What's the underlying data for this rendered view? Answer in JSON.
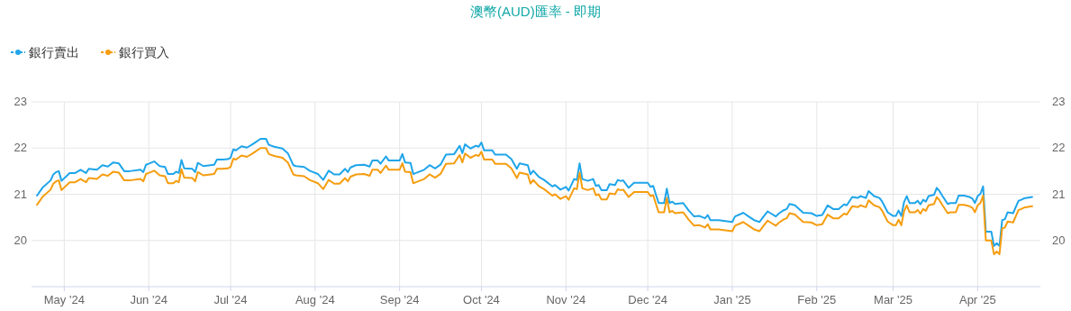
{
  "chart_data": {
    "type": "line",
    "title": "澳幣(AUD)匯率 - 即期",
    "legend": "top left",
    "grid": true,
    "x": [
      "2024-04-21",
      "2024-04-23",
      "2024-04-26",
      "2024-04-27",
      "2024-04-28",
      "2024-04-29",
      "2024-04-30",
      "2024-05-03",
      "2024-05-05",
      "2024-05-07",
      "2024-05-09",
      "2024-05-10",
      "2024-05-13",
      "2024-05-15",
      "2024-05-17",
      "2024-05-19",
      "2024-05-21",
      "2024-05-23",
      "2024-05-25",
      "2024-05-29",
      "2024-05-30",
      "2024-05-31",
      "2024-06-01",
      "2024-06-03",
      "2024-06-05",
      "2024-06-07",
      "2024-06-08",
      "2024-06-10",
      "2024-06-11",
      "2024-06-12",
      "2024-06-13",
      "2024-06-14",
      "2024-06-17",
      "2024-06-18",
      "2024-06-19",
      "2024-06-21",
      "2024-06-25",
      "2024-06-26",
      "2024-06-28",
      "2024-06-30",
      "2024-07-01",
      "2024-07-02",
      "2024-07-03",
      "2024-07-05",
      "2024-07-07",
      "2024-07-09",
      "2024-07-10",
      "2024-07-12",
      "2024-07-14",
      "2024-07-15",
      "2024-07-17",
      "2024-07-20",
      "2024-07-22",
      "2024-07-24",
      "2024-07-25",
      "2024-07-28",
      "2024-07-30",
      "2024-08-02",
      "2024-08-04",
      "2024-08-06",
      "2024-08-08",
      "2024-08-10",
      "2024-08-12",
      "2024-08-13",
      "2024-08-14",
      "2024-08-16",
      "2024-08-19",
      "2024-08-21",
      "2024-08-22",
      "2024-08-24",
      "2024-08-25",
      "2024-08-27",
      "2024-08-28",
      "2024-09-01",
      "2024-09-02",
      "2024-09-03",
      "2024-09-05",
      "2024-09-06",
      "2024-09-07",
      "2024-09-10",
      "2024-09-12",
      "2024-09-14",
      "2024-09-16",
      "2024-09-18",
      "2024-09-21",
      "2024-09-23",
      "2024-09-24",
      "2024-09-25",
      "2024-09-27",
      "2024-09-29",
      "2024-09-30",
      "2024-10-01",
      "2024-10-02",
      "2024-10-05",
      "2024-10-06",
      "2024-10-10",
      "2024-10-12",
      "2024-10-14",
      "2024-10-15",
      "2024-10-18",
      "2024-10-19",
      "2024-10-20",
      "2024-10-22",
      "2024-10-24",
      "2024-10-27",
      "2024-10-28",
      "2024-10-30",
      "2024-11-01",
      "2024-11-02",
      "2024-11-04",
      "2024-11-05",
      "2024-11-06",
      "2024-11-07",
      "2024-11-09",
      "2024-11-11",
      "2024-11-12",
      "2024-11-13",
      "2024-11-14",
      "2024-11-16",
      "2024-11-17",
      "2024-11-19",
      "2024-11-20",
      "2024-11-21",
      "2024-11-22",
      "2024-11-24",
      "2024-11-26",
      "2024-12-01",
      "2024-12-02",
      "2024-12-03",
      "2024-12-04",
      "2024-12-05",
      "2024-12-07",
      "2024-12-08",
      "2024-12-09",
      "2024-12-10",
      "2024-12-11",
      "2024-12-14",
      "2024-12-16",
      "2024-12-18",
      "2024-12-20",
      "2024-12-22",
      "2024-12-23",
      "2024-12-24",
      "2024-12-27",
      "2025-01-01",
      "2025-01-02",
      "2025-01-04",
      "2025-01-05",
      "2025-01-07",
      "2025-01-09",
      "2025-01-11",
      "2025-01-12",
      "2025-01-14",
      "2025-01-15",
      "2025-01-17",
      "2025-01-18",
      "2025-01-20",
      "2025-01-21",
      "2025-01-22",
      "2025-01-24",
      "2025-01-27",
      "2025-01-30",
      "2025-02-01",
      "2025-02-03",
      "2025-02-05",
      "2025-02-07",
      "2025-02-09",
      "2025-02-11",
      "2025-02-12",
      "2025-02-14",
      "2025-02-16",
      "2025-02-17",
      "2025-02-19",
      "2025-02-20",
      "2025-02-22",
      "2025-02-24",
      "2025-02-25",
      "2025-02-27",
      "2025-03-01",
      "2025-03-02",
      "2025-03-03",
      "2025-03-04",
      "2025-03-05",
      "2025-03-06",
      "2025-03-07",
      "2025-03-09",
      "2025-03-10",
      "2025-03-11",
      "2025-03-12",
      "2025-03-13",
      "2025-03-14",
      "2025-03-16",
      "2025-03-17",
      "2025-03-18",
      "2025-03-19",
      "2025-03-21",
      "2025-03-22",
      "2025-03-24",
      "2025-03-25",
      "2025-03-27",
      "2025-03-29",
      "2025-03-30",
      "2025-03-31",
      "2025-04-01",
      "2025-04-02",
      "2025-04-03",
      "2025-04-04",
      "2025-04-06",
      "2025-04-07",
      "2025-04-08",
      "2025-04-09",
      "2025-04-10",
      "2025-04-11",
      "2025-04-12",
      "2025-04-14",
      "2025-04-16",
      "2025-04-17",
      "2025-04-18",
      "2025-04-21"
    ],
    "series": [
      {
        "name": "銀行賣出",
        "color": "#1fa5ea",
        "values": [
          20.97,
          21.14,
          21.3,
          21.43,
          21.48,
          21.5,
          21.29,
          21.46,
          21.46,
          21.53,
          21.46,
          21.55,
          21.53,
          21.63,
          21.6,
          21.69,
          21.67,
          21.5,
          21.5,
          21.53,
          21.48,
          21.64,
          21.66,
          21.71,
          21.61,
          21.59,
          21.44,
          21.44,
          21.49,
          21.46,
          21.74,
          21.56,
          21.55,
          21.48,
          21.68,
          21.61,
          21.64,
          21.75,
          21.75,
          21.76,
          21.79,
          21.97,
          21.95,
          22.04,
          22.01,
          22.08,
          22.12,
          22.2,
          22.2,
          22.07,
          22.03,
          21.99,
          21.89,
          21.63,
          21.61,
          21.59,
          21.51,
          21.44,
          21.31,
          21.51,
          21.43,
          21.43,
          21.55,
          21.48,
          21.58,
          21.63,
          21.64,
          21.6,
          21.73,
          21.73,
          21.66,
          21.82,
          21.73,
          21.73,
          21.87,
          21.69,
          21.68,
          21.44,
          21.46,
          21.53,
          21.63,
          21.56,
          21.64,
          21.86,
          21.87,
          22.05,
          21.89,
          22.08,
          21.99,
          22.05,
          22.03,
          22.12,
          21.95,
          21.95,
          21.86,
          21.86,
          21.76,
          21.55,
          21.67,
          21.63,
          21.43,
          21.51,
          21.38,
          21.31,
          21.17,
          21.2,
          21.1,
          21.16,
          21.08,
          21.33,
          21.31,
          21.67,
          21.33,
          21.29,
          21.33,
          21.18,
          21.2,
          21.09,
          21.09,
          21.22,
          21.2,
          21.31,
          21.29,
          21.3,
          21.14,
          21.25,
          21.25,
          21.16,
          21.18,
          20.99,
          20.81,
          20.81,
          21.12,
          20.81,
          20.84,
          20.79,
          20.81,
          20.65,
          20.52,
          20.53,
          20.48,
          20.55,
          20.44,
          20.44,
          20.4,
          20.52,
          20.57,
          20.6,
          20.52,
          20.44,
          20.4,
          20.48,
          20.63,
          20.59,
          20.52,
          20.58,
          20.66,
          20.68,
          20.79,
          20.76,
          20.6,
          20.59,
          20.53,
          20.55,
          20.76,
          20.68,
          20.68,
          20.78,
          20.76,
          20.94,
          20.92,
          20.96,
          20.92,
          21.07,
          20.96,
          20.92,
          20.84,
          20.61,
          20.53,
          20.53,
          20.65,
          20.53,
          20.83,
          20.96,
          20.81,
          20.81,
          20.86,
          20.78,
          20.88,
          20.84,
          20.96,
          20.99,
          21.14,
          21.07,
          20.97,
          20.79,
          20.81,
          20.81,
          20.97,
          20.97,
          20.94,
          20.91,
          20.81,
          20.96,
          21.01,
          21.17,
          20.19,
          20.19,
          19.88,
          19.94,
          19.88,
          20.44,
          20.46,
          20.61,
          20.59,
          20.86,
          20.88,
          20.91,
          20.94
        ]
      },
      {
        "name": "銀行買入",
        "color": "#f59d0f",
        "values": [
          20.77,
          20.94,
          21.1,
          21.23,
          21.28,
          21.3,
          21.09,
          21.26,
          21.26,
          21.33,
          21.26,
          21.35,
          21.33,
          21.43,
          21.4,
          21.49,
          21.47,
          21.3,
          21.3,
          21.33,
          21.28,
          21.44,
          21.46,
          21.51,
          21.41,
          21.39,
          21.24,
          21.24,
          21.29,
          21.26,
          21.54,
          21.36,
          21.35,
          21.28,
          21.48,
          21.41,
          21.44,
          21.55,
          21.55,
          21.56,
          21.59,
          21.77,
          21.75,
          21.84,
          21.81,
          21.88,
          21.92,
          22.0,
          22.0,
          21.87,
          21.83,
          21.79,
          21.69,
          21.43,
          21.41,
          21.39,
          21.31,
          21.24,
          21.11,
          21.31,
          21.23,
          21.23,
          21.35,
          21.28,
          21.38,
          21.43,
          21.44,
          21.4,
          21.53,
          21.53,
          21.46,
          21.62,
          21.53,
          21.53,
          21.67,
          21.49,
          21.48,
          21.24,
          21.26,
          21.33,
          21.43,
          21.36,
          21.44,
          21.66,
          21.67,
          21.85,
          21.69,
          21.88,
          21.79,
          21.85,
          21.83,
          21.92,
          21.75,
          21.75,
          21.66,
          21.66,
          21.56,
          21.35,
          21.47,
          21.43,
          21.23,
          21.31,
          21.18,
          21.11,
          20.97,
          21.0,
          20.9,
          20.96,
          20.88,
          21.13,
          21.11,
          21.47,
          21.13,
          21.09,
          21.13,
          20.98,
          21.0,
          20.89,
          20.89,
          21.02,
          21.0,
          21.11,
          21.09,
          21.1,
          20.94,
          21.05,
          21.05,
          20.96,
          20.98,
          20.79,
          20.61,
          20.61,
          20.92,
          20.61,
          20.64,
          20.59,
          20.61,
          20.45,
          20.32,
          20.33,
          20.28,
          20.35,
          20.24,
          20.24,
          20.2,
          20.32,
          20.37,
          20.4,
          20.32,
          20.24,
          20.2,
          20.28,
          20.43,
          20.39,
          20.32,
          20.38,
          20.46,
          20.48,
          20.59,
          20.56,
          20.4,
          20.39,
          20.33,
          20.35,
          20.56,
          20.48,
          20.48,
          20.58,
          20.56,
          20.74,
          20.72,
          20.76,
          20.72,
          20.87,
          20.76,
          20.72,
          20.64,
          20.41,
          20.33,
          20.33,
          20.45,
          20.33,
          20.63,
          20.76,
          20.61,
          20.61,
          20.66,
          20.58,
          20.68,
          20.64,
          20.76,
          20.79,
          20.94,
          20.87,
          20.77,
          20.59,
          20.61,
          20.61,
          20.77,
          20.77,
          20.74,
          20.71,
          20.61,
          20.76,
          20.81,
          20.97,
          20.0,
          20.0,
          19.7,
          19.76,
          19.7,
          20.26,
          20.28,
          20.41,
          20.39,
          20.66,
          20.68,
          20.71,
          20.74
        ]
      }
    ],
    "xlim": [
      "2024-04-19",
      "2025-04-24"
    ],
    "xticks": [
      {
        "value": "2024-05-01",
        "label": "May '24"
      },
      {
        "value": "2024-06-01",
        "label": "Jun '24"
      },
      {
        "value": "2024-07-01",
        "label": "Jul '24"
      },
      {
        "value": "2024-08-01",
        "label": "Aug '24"
      },
      {
        "value": "2024-09-01",
        "label": "Sep '24"
      },
      {
        "value": "2024-10-01",
        "label": "Oct '24"
      },
      {
        "value": "2024-11-01",
        "label": "Nov '24"
      },
      {
        "value": "2024-12-01",
        "label": "Dec '24"
      },
      {
        "value": "2025-01-01",
        "label": "Jan '25"
      },
      {
        "value": "2025-02-01",
        "label": "Feb '25"
      },
      {
        "value": "2025-03-01",
        "label": "Mar '25"
      },
      {
        "value": "2025-04-01",
        "label": "Apr '25"
      }
    ],
    "ylim": [
      19,
      23
    ],
    "yticks": [
      20,
      21,
      22,
      23
    ],
    "y2lim": [
      19,
      23
    ],
    "y2ticks": [
      20,
      21,
      22,
      23
    ]
  }
}
